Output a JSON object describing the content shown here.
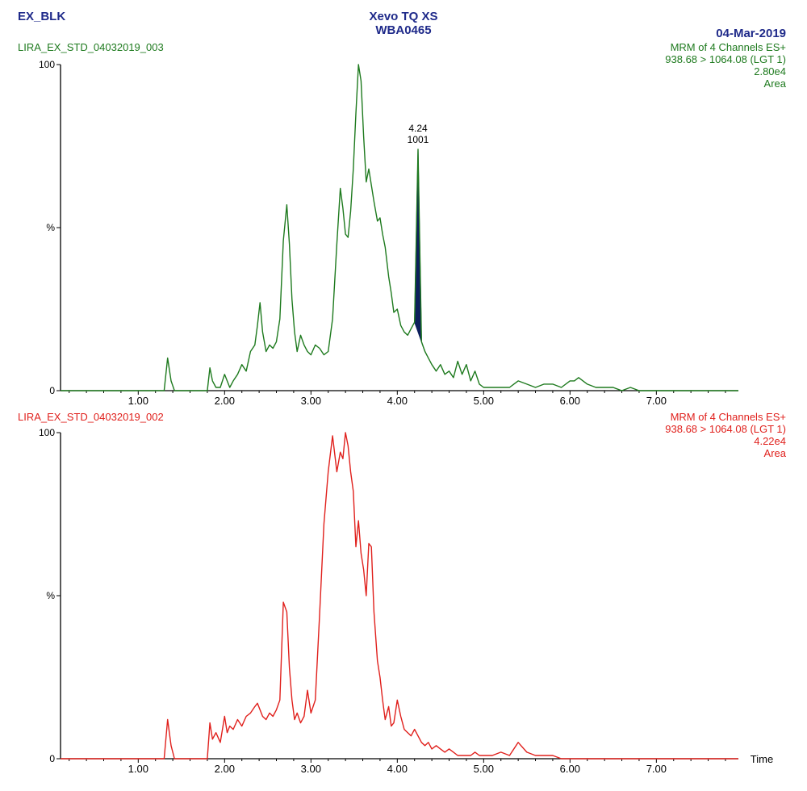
{
  "header": {
    "sample": "EX_BLK",
    "instrument": "Xevo TQ XS",
    "instrument_id": "WBA0465",
    "date": "04-Mar-2019"
  },
  "colors": {
    "green_trace": "#1e7a1e",
    "red_trace": "#e0201c",
    "peak_fill": "#0d1f5c",
    "axis": "#000000",
    "header": "#1f2a8a"
  },
  "x_axis_label": "Time",
  "chart_data": [
    {
      "type": "line",
      "name": "LIRA_EX_STD_04032019_003",
      "channel": "MRM of 4 Channels ES+",
      "transition": "938.68 > 1064.08 (LGT 1)",
      "intensity": "2.80e4",
      "mode": "Area",
      "xlim": [
        0.1,
        7.95
      ],
      "ylim": [
        0,
        100
      ],
      "x_ticks": [
        "1.00",
        "2.00",
        "3.00",
        "4.00",
        "5.00",
        "6.00",
        "7.00"
      ],
      "y_ticks": [
        "0",
        "%",
        "100"
      ],
      "peak_label": {
        "rt": "4.24",
        "area": "1001",
        "x": 4.24,
        "y": 74,
        "integration_start": 4.2,
        "integration_end": 4.32
      },
      "x": [
        0.1,
        1.3,
        1.34,
        1.38,
        1.42,
        1.46,
        1.5,
        1.8,
        1.83,
        1.86,
        1.9,
        1.95,
        2.0,
        2.03,
        2.06,
        2.1,
        2.15,
        2.2,
        2.25,
        2.3,
        2.35,
        2.38,
        2.41,
        2.44,
        2.48,
        2.52,
        2.56,
        2.6,
        2.64,
        2.68,
        2.72,
        2.75,
        2.78,
        2.81,
        2.84,
        2.88,
        2.92,
        2.96,
        3.0,
        3.05,
        3.1,
        3.15,
        3.2,
        3.25,
        3.3,
        3.34,
        3.37,
        3.4,
        3.43,
        3.46,
        3.49,
        3.52,
        3.55,
        3.58,
        3.61,
        3.64,
        3.67,
        3.7,
        3.73,
        3.77,
        3.8,
        3.83,
        3.86,
        3.9,
        3.93,
        3.96,
        4.0,
        4.04,
        4.08,
        4.12,
        4.16,
        4.2,
        4.24,
        4.28,
        4.32,
        4.36,
        4.4,
        4.45,
        4.5,
        4.55,
        4.6,
        4.65,
        4.7,
        4.75,
        4.8,
        4.85,
        4.9,
        4.95,
        5.0,
        5.1,
        5.2,
        5.3,
        5.4,
        5.5,
        5.6,
        5.7,
        5.8,
        5.9,
        6.0,
        6.05,
        6.1,
        6.2,
        6.3,
        6.4,
        6.5,
        6.6,
        6.7,
        6.8,
        7.0,
        7.95
      ],
      "y": [
        0,
        0,
        10,
        3,
        0,
        0,
        0,
        0,
        7,
        3,
        1,
        1,
        5,
        3,
        1,
        3,
        5,
        8,
        6,
        12,
        14,
        20,
        27,
        18,
        12,
        14,
        13,
        15,
        22,
        46,
        57,
        45,
        28,
        18,
        12,
        17,
        14,
        12,
        11,
        14,
        13,
        11,
        12,
        22,
        45,
        62,
        56,
        48,
        47,
        55,
        68,
        85,
        100,
        95,
        78,
        64,
        68,
        63,
        58,
        52,
        53,
        48,
        44,
        35,
        30,
        24,
        25,
        20,
        18,
        17,
        19,
        21,
        74,
        15,
        12,
        10,
        8,
        6,
        8,
        5,
        6,
        4,
        9,
        5,
        8,
        3,
        6,
        2,
        1,
        1,
        1,
        1,
        3,
        2,
        1,
        2,
        2,
        1,
        3,
        3,
        4,
        2,
        1,
        1,
        1,
        0,
        1,
        0,
        0,
        0
      ]
    },
    {
      "type": "line",
      "name": "LIRA_EX_STD_04032019_002",
      "channel": "MRM of 4 Channels ES+",
      "transition": "938.68 > 1064.08 (LGT 1)",
      "intensity": "4.22e4",
      "mode": "Area",
      "xlim": [
        0.1,
        7.95
      ],
      "ylim": [
        0,
        100
      ],
      "x_ticks": [
        "1.00",
        "2.00",
        "3.00",
        "4.00",
        "5.00",
        "6.00",
        "7.00"
      ],
      "y_ticks": [
        "0",
        "%",
        "100"
      ],
      "x": [
        0.1,
        1.3,
        1.34,
        1.38,
        1.42,
        1.46,
        1.5,
        1.8,
        1.83,
        1.86,
        1.9,
        1.95,
        2.0,
        2.03,
        2.06,
        2.1,
        2.15,
        2.2,
        2.25,
        2.3,
        2.35,
        2.38,
        2.41,
        2.44,
        2.48,
        2.52,
        2.56,
        2.6,
        2.64,
        2.68,
        2.72,
        2.75,
        2.78,
        2.81,
        2.84,
        2.88,
        2.92,
        2.96,
        3.0,
        3.05,
        3.1,
        3.15,
        3.2,
        3.25,
        3.3,
        3.34,
        3.37,
        3.4,
        3.43,
        3.46,
        3.49,
        3.52,
        3.55,
        3.58,
        3.61,
        3.64,
        3.67,
        3.7,
        3.73,
        3.77,
        3.8,
        3.83,
        3.86,
        3.9,
        3.93,
        3.96,
        4.0,
        4.04,
        4.08,
        4.12,
        4.16,
        4.2,
        4.24,
        4.28,
        4.32,
        4.36,
        4.4,
        4.45,
        4.5,
        4.55,
        4.6,
        4.65,
        4.7,
        4.75,
        4.8,
        4.85,
        4.9,
        4.95,
        5.0,
        5.1,
        5.2,
        5.3,
        5.4,
        5.5,
        5.6,
        5.7,
        5.8,
        5.9,
        6.0,
        6.05,
        6.1,
        6.2,
        6.3,
        6.4,
        6.5,
        6.6,
        6.7,
        6.8,
        7.0,
        7.95
      ],
      "y": [
        0,
        0,
        12,
        4,
        0,
        0,
        0,
        0,
        11,
        6,
        8,
        5,
        13,
        8,
        10,
        9,
        12,
        10,
        13,
        14,
        16,
        17,
        15,
        13,
        12,
        14,
        13,
        15,
        18,
        48,
        45,
        28,
        18,
        12,
        14,
        11,
        13,
        21,
        14,
        18,
        44,
        72,
        88,
        99,
        88,
        94,
        92,
        100,
        96,
        88,
        82,
        65,
        73,
        63,
        58,
        50,
        66,
        65,
        45,
        30,
        25,
        18,
        12,
        16,
        10,
        11,
        18,
        13,
        9,
        8,
        7,
        9,
        7,
        5,
        4,
        5,
        3,
        4,
        3,
        2,
        3,
        2,
        1,
        1,
        1,
        1,
        2,
        1,
        1,
        1,
        2,
        1,
        5,
        2,
        1,
        1,
        1,
        0,
        0,
        0,
        0,
        0,
        0,
        0,
        0,
        0,
        0,
        0,
        0,
        0
      ]
    }
  ]
}
